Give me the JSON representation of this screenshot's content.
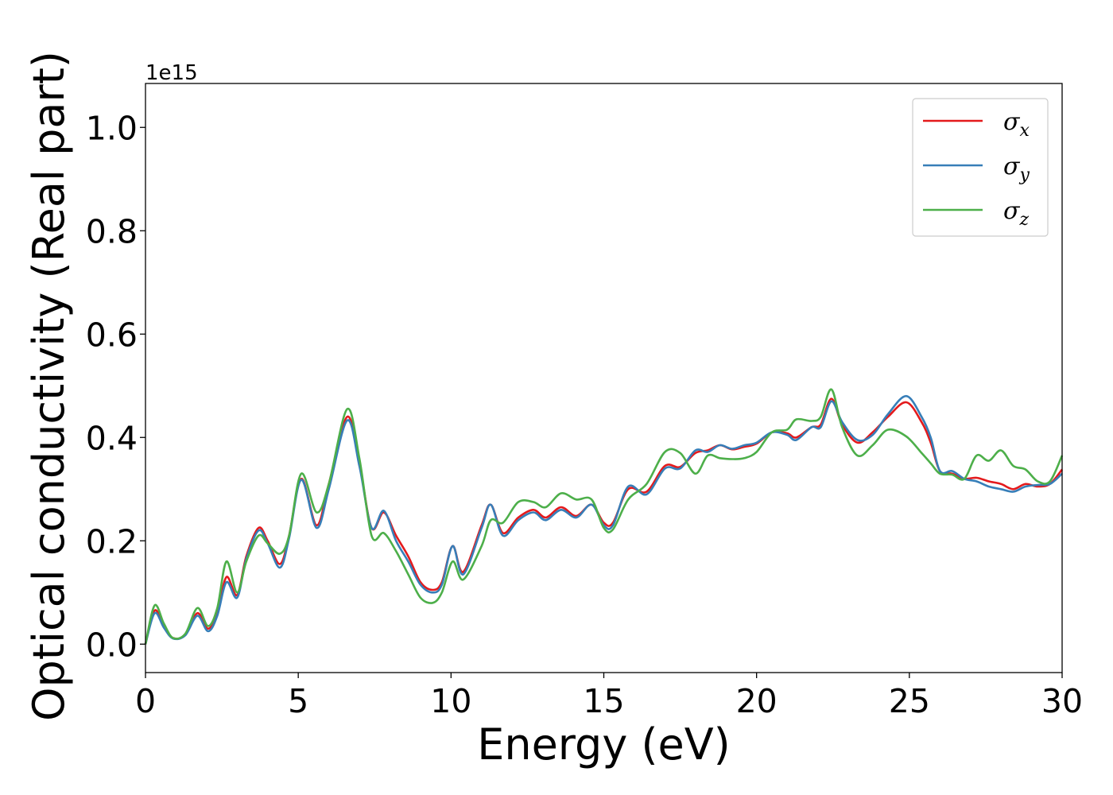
{
  "chart_data": {
    "type": "line",
    "title": "",
    "xlabel": "Energy (eV)",
    "ylabel": "Optical conductivity (Real part)",
    "y_offset_text": "1e15",
    "xlim": [
      0,
      30
    ],
    "ylim": [
      -0.055,
      1.085
    ],
    "x_ticks": [
      0,
      5,
      10,
      15,
      20,
      25,
      30
    ],
    "x_tick_labels": [
      "0",
      "5",
      "10",
      "15",
      "20",
      "25",
      "30"
    ],
    "y_ticks": [
      0.0,
      0.2,
      0.4,
      0.6,
      0.8,
      1.0
    ],
    "y_tick_labels": [
      "0.0",
      "0.2",
      "0.4",
      "0.6",
      "0.8",
      "1.0"
    ],
    "grid": false,
    "legend_position": "top-right",
    "series": [
      {
        "name": "σx",
        "symbol": "σ",
        "subscript": "x",
        "color": "#e41a1c",
        "points": [
          [
            0,
            0.0
          ],
          [
            0.3,
            0.065
          ],
          [
            0.6,
            0.035
          ],
          [
            0.9,
            0.012
          ],
          [
            1.3,
            0.018
          ],
          [
            1.7,
            0.06
          ],
          [
            2.05,
            0.03
          ],
          [
            2.35,
            0.06
          ],
          [
            2.65,
            0.13
          ],
          [
            3.0,
            0.095
          ],
          [
            3.3,
            0.17
          ],
          [
            3.7,
            0.225
          ],
          [
            4.0,
            0.2
          ],
          [
            4.4,
            0.155
          ],
          [
            4.7,
            0.21
          ],
          [
            5.1,
            0.32
          ],
          [
            5.6,
            0.23
          ],
          [
            6.0,
            0.31
          ],
          [
            6.6,
            0.44
          ],
          [
            7.0,
            0.35
          ],
          [
            7.4,
            0.225
          ],
          [
            7.8,
            0.255
          ],
          [
            8.2,
            0.21
          ],
          [
            8.6,
            0.17
          ],
          [
            9.0,
            0.12
          ],
          [
            9.4,
            0.105
          ],
          [
            9.7,
            0.12
          ],
          [
            10.05,
            0.19
          ],
          [
            10.4,
            0.14
          ],
          [
            11.0,
            0.23
          ],
          [
            11.3,
            0.27
          ],
          [
            11.7,
            0.215
          ],
          [
            12.2,
            0.245
          ],
          [
            12.7,
            0.26
          ],
          [
            13.1,
            0.245
          ],
          [
            13.6,
            0.265
          ],
          [
            14.1,
            0.248
          ],
          [
            14.6,
            0.27
          ],
          [
            15.0,
            0.235
          ],
          [
            15.3,
            0.235
          ],
          [
            15.8,
            0.3
          ],
          [
            16.4,
            0.295
          ],
          [
            17.0,
            0.345
          ],
          [
            17.5,
            0.343
          ],
          [
            18.0,
            0.37
          ],
          [
            18.4,
            0.375
          ],
          [
            18.8,
            0.385
          ],
          [
            19.2,
            0.377
          ],
          [
            19.6,
            0.382
          ],
          [
            20.0,
            0.388
          ],
          [
            20.5,
            0.41
          ],
          [
            21.0,
            0.408
          ],
          [
            21.3,
            0.4
          ],
          [
            21.8,
            0.42
          ],
          [
            22.1,
            0.425
          ],
          [
            22.45,
            0.475
          ],
          [
            22.8,
            0.425
          ],
          [
            23.3,
            0.39
          ],
          [
            23.8,
            0.41
          ],
          [
            24.3,
            0.44
          ],
          [
            24.9,
            0.468
          ],
          [
            25.4,
            0.43
          ],
          [
            25.7,
            0.39
          ],
          [
            26.0,
            0.335
          ],
          [
            26.4,
            0.33
          ],
          [
            26.8,
            0.32
          ],
          [
            27.2,
            0.322
          ],
          [
            27.6,
            0.315
          ],
          [
            28.0,
            0.31
          ],
          [
            28.4,
            0.3
          ],
          [
            28.8,
            0.31
          ],
          [
            29.2,
            0.305
          ],
          [
            29.6,
            0.31
          ],
          [
            30.0,
            0.338
          ]
        ]
      },
      {
        "name": "σy",
        "symbol": "σ",
        "subscript": "y",
        "color": "#377eb8",
        "points": [
          [
            0,
            0.0
          ],
          [
            0.3,
            0.06
          ],
          [
            0.6,
            0.032
          ],
          [
            0.9,
            0.011
          ],
          [
            1.3,
            0.017
          ],
          [
            1.7,
            0.055
          ],
          [
            2.05,
            0.025
          ],
          [
            2.35,
            0.055
          ],
          [
            2.65,
            0.12
          ],
          [
            3.0,
            0.09
          ],
          [
            3.3,
            0.165
          ],
          [
            3.7,
            0.22
          ],
          [
            4.0,
            0.195
          ],
          [
            4.4,
            0.148
          ],
          [
            4.7,
            0.205
          ],
          [
            5.1,
            0.318
          ],
          [
            5.6,
            0.225
          ],
          [
            6.0,
            0.3
          ],
          [
            6.6,
            0.433
          ],
          [
            7.0,
            0.345
          ],
          [
            7.4,
            0.225
          ],
          [
            7.8,
            0.258
          ],
          [
            8.2,
            0.2
          ],
          [
            8.6,
            0.16
          ],
          [
            9.0,
            0.115
          ],
          [
            9.4,
            0.1
          ],
          [
            9.7,
            0.115
          ],
          [
            10.05,
            0.19
          ],
          [
            10.4,
            0.135
          ],
          [
            11.0,
            0.225
          ],
          [
            11.3,
            0.27
          ],
          [
            11.7,
            0.21
          ],
          [
            12.2,
            0.24
          ],
          [
            12.7,
            0.255
          ],
          [
            13.1,
            0.24
          ],
          [
            13.6,
            0.26
          ],
          [
            14.1,
            0.245
          ],
          [
            14.6,
            0.27
          ],
          [
            15.0,
            0.23
          ],
          [
            15.3,
            0.23
          ],
          [
            15.8,
            0.305
          ],
          [
            16.4,
            0.29
          ],
          [
            17.0,
            0.34
          ],
          [
            17.5,
            0.34
          ],
          [
            18.0,
            0.375
          ],
          [
            18.4,
            0.372
          ],
          [
            18.8,
            0.385
          ],
          [
            19.2,
            0.378
          ],
          [
            19.6,
            0.385
          ],
          [
            20.0,
            0.39
          ],
          [
            20.5,
            0.41
          ],
          [
            21.0,
            0.405
          ],
          [
            21.3,
            0.395
          ],
          [
            21.8,
            0.42
          ],
          [
            22.1,
            0.42
          ],
          [
            22.45,
            0.47
          ],
          [
            22.8,
            0.43
          ],
          [
            23.3,
            0.395
          ],
          [
            23.8,
            0.405
          ],
          [
            24.3,
            0.445
          ],
          [
            24.9,
            0.48
          ],
          [
            25.4,
            0.44
          ],
          [
            25.7,
            0.4
          ],
          [
            26.0,
            0.335
          ],
          [
            26.4,
            0.335
          ],
          [
            26.8,
            0.32
          ],
          [
            27.2,
            0.315
          ],
          [
            27.6,
            0.305
          ],
          [
            28.0,
            0.3
          ],
          [
            28.4,
            0.295
          ],
          [
            28.8,
            0.305
          ],
          [
            29.2,
            0.308
          ],
          [
            29.6,
            0.31
          ],
          [
            30.0,
            0.33
          ]
        ]
      },
      {
        "name": "σz",
        "symbol": "σ",
        "subscript": "z",
        "color": "#4daf4a",
        "points": [
          [
            0,
            0.0
          ],
          [
            0.3,
            0.075
          ],
          [
            0.6,
            0.04
          ],
          [
            0.9,
            0.012
          ],
          [
            1.3,
            0.02
          ],
          [
            1.7,
            0.07
          ],
          [
            2.05,
            0.035
          ],
          [
            2.35,
            0.07
          ],
          [
            2.65,
            0.16
          ],
          [
            3.0,
            0.1
          ],
          [
            3.3,
            0.16
          ],
          [
            3.7,
            0.21
          ],
          [
            4.0,
            0.195
          ],
          [
            4.4,
            0.175
          ],
          [
            4.7,
            0.21
          ],
          [
            5.1,
            0.33
          ],
          [
            5.6,
            0.255
          ],
          [
            6.0,
            0.31
          ],
          [
            6.6,
            0.455
          ],
          [
            7.0,
            0.36
          ],
          [
            7.4,
            0.21
          ],
          [
            7.8,
            0.215
          ],
          [
            8.2,
            0.18
          ],
          [
            8.6,
            0.135
          ],
          [
            9.0,
            0.09
          ],
          [
            9.4,
            0.08
          ],
          [
            9.7,
            0.1
          ],
          [
            10.05,
            0.16
          ],
          [
            10.4,
            0.125
          ],
          [
            11.0,
            0.19
          ],
          [
            11.3,
            0.24
          ],
          [
            11.7,
            0.235
          ],
          [
            12.2,
            0.275
          ],
          [
            12.7,
            0.275
          ],
          [
            13.1,
            0.265
          ],
          [
            13.6,
            0.292
          ],
          [
            14.1,
            0.28
          ],
          [
            14.6,
            0.28
          ],
          [
            15.0,
            0.225
          ],
          [
            15.3,
            0.222
          ],
          [
            15.8,
            0.28
          ],
          [
            16.4,
            0.31
          ],
          [
            17.0,
            0.372
          ],
          [
            17.5,
            0.37
          ],
          [
            18.0,
            0.33
          ],
          [
            18.4,
            0.365
          ],
          [
            18.8,
            0.36
          ],
          [
            19.2,
            0.358
          ],
          [
            19.6,
            0.36
          ],
          [
            20.0,
            0.372
          ],
          [
            20.5,
            0.41
          ],
          [
            21.0,
            0.415
          ],
          [
            21.3,
            0.435
          ],
          [
            21.8,
            0.432
          ],
          [
            22.1,
            0.44
          ],
          [
            22.45,
            0.493
          ],
          [
            22.8,
            0.42
          ],
          [
            23.3,
            0.365
          ],
          [
            23.8,
            0.385
          ],
          [
            24.3,
            0.415
          ],
          [
            24.9,
            0.402
          ],
          [
            25.4,
            0.37
          ],
          [
            25.7,
            0.35
          ],
          [
            26.0,
            0.33
          ],
          [
            26.4,
            0.328
          ],
          [
            26.8,
            0.32
          ],
          [
            27.2,
            0.365
          ],
          [
            27.6,
            0.355
          ],
          [
            28.0,
            0.375
          ],
          [
            28.4,
            0.345
          ],
          [
            28.8,
            0.338
          ],
          [
            29.2,
            0.315
          ],
          [
            29.6,
            0.315
          ],
          [
            30.0,
            0.365
          ]
        ]
      }
    ]
  }
}
